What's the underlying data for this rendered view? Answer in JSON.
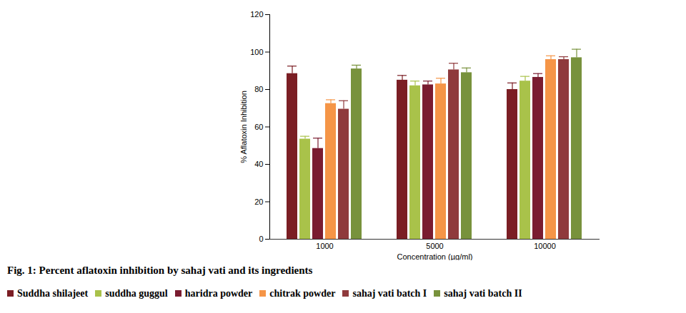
{
  "chart_data": {
    "type": "bar",
    "caption": "Fig. 1: Percent aflatoxin inhibition by sahaj vati and its ingredients",
    "x_label": "Concentration (µg/ml)",
    "y_label": "% Aflatoxin Inhibition",
    "categories": [
      "1000",
      "5000",
      "10000"
    ],
    "series": [
      {
        "name": "Suddha shilajeet",
        "color": "#7b1e24",
        "values": [
          88.5,
          85,
          80
        ],
        "error": [
          4,
          2.5,
          3.5
        ]
      },
      {
        "name": "suddha guggul",
        "color": "#a9c24a",
        "values": [
          53.5,
          82,
          84.5
        ],
        "error": [
          1.5,
          2.5,
          2.5
        ]
      },
      {
        "name": "haridra powder",
        "color": "#7a1c30",
        "values": [
          48.5,
          82.5,
          86.5
        ],
        "error": [
          5.5,
          2,
          2
        ]
      },
      {
        "name": "chitrak powder",
        "color": "#f59547",
        "values": [
          72.5,
          83,
          96
        ],
        "error": [
          2,
          3,
          2
        ]
      },
      {
        "name": "sahaj vati batch I",
        "color": "#8f3a3c",
        "values": [
          69.5,
          90.5,
          96
        ],
        "error": [
          4.5,
          3.5,
          1.5
        ]
      },
      {
        "name": "sahaj vati batch II",
        "color": "#78923c",
        "values": [
          91,
          89,
          97
        ],
        "error": [
          2,
          2.5,
          4.5
        ]
      }
    ],
    "ylim": [
      0,
      120
    ],
    "yticks": [
      0,
      20,
      40,
      60,
      80,
      100,
      120
    ],
    "grid": false
  }
}
